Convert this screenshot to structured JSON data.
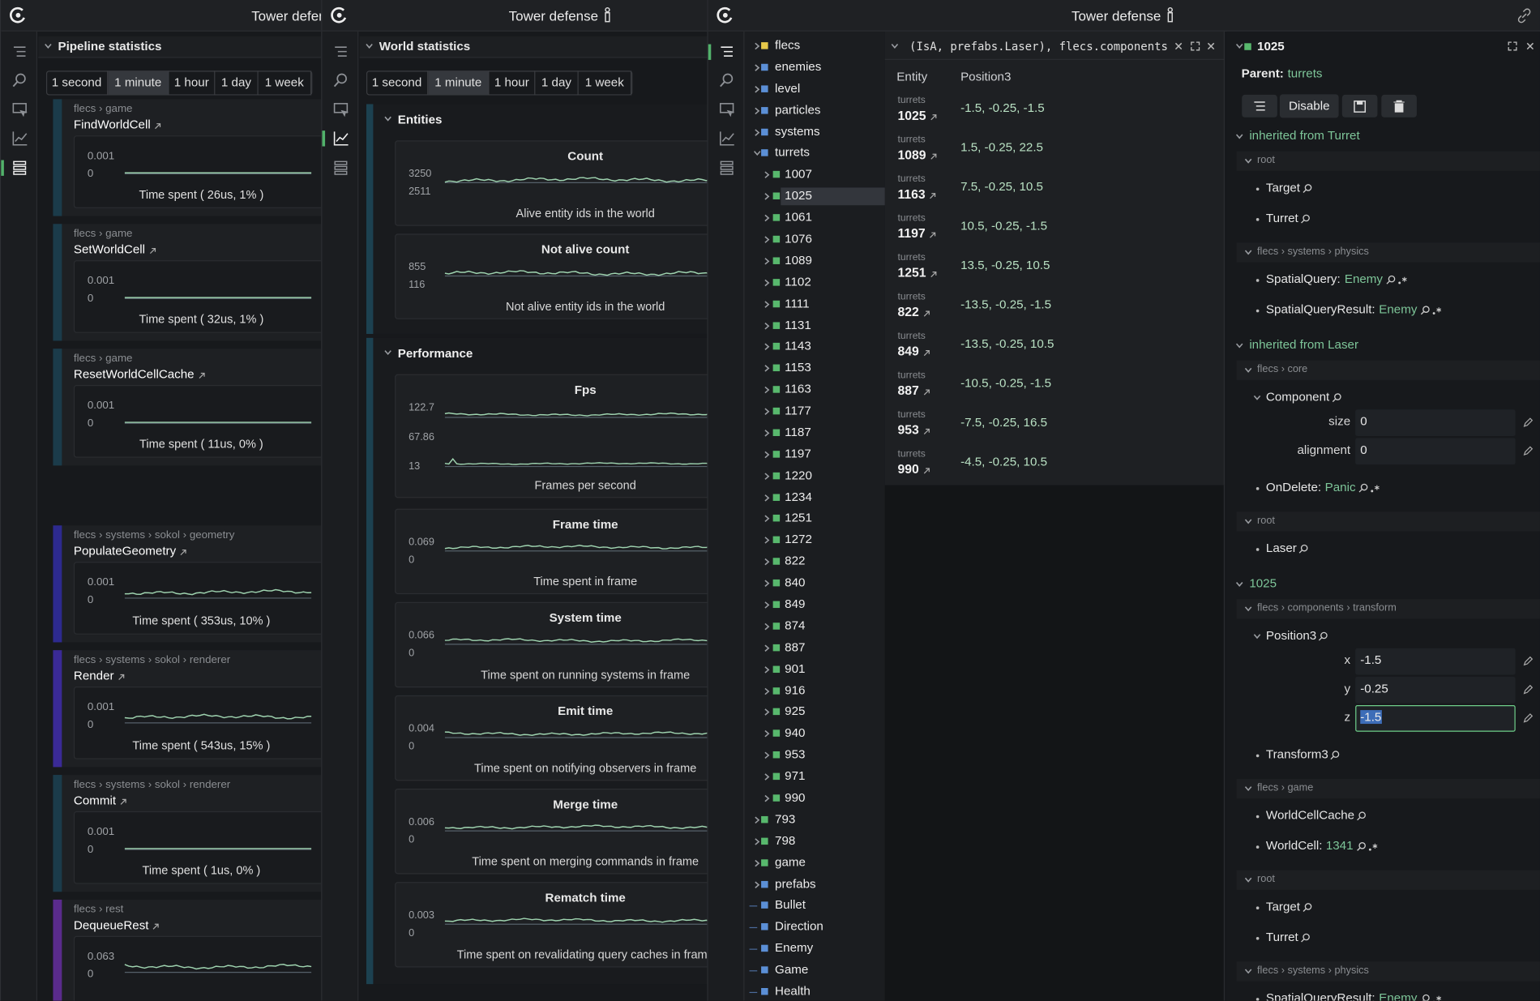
{
  "windows": [
    {
      "title": "Tower defense"
    },
    {
      "title": "Tower defense"
    },
    {
      "title": "Tower defense"
    }
  ],
  "pipeline": {
    "title": "Pipeline statistics",
    "tabs": [
      "1 second",
      "1 minute",
      "1 hour",
      "1 day",
      "1 week"
    ],
    "systems": [
      {
        "path": "flecs › game",
        "name": "FindWorldCell",
        "ymax": 0.001,
        "ymin": 0,
        "caption": "Time spent ( 26us, 1% )",
        "color": "#1b3b4a"
      },
      {
        "path": "flecs › game",
        "name": "SetWorldCell",
        "ymax": 0.001,
        "ymin": 0,
        "caption": "Time spent ( 32us, 1% )",
        "color": "#1b3b4a"
      },
      {
        "path": "flecs › game",
        "name": "ResetWorldCellCache",
        "ymax": 0.001,
        "ymin": 0,
        "caption": "Time spent ( 11us, 0% )",
        "color": "#1b3b4a"
      },
      {
        "path": "flecs › systems › sokol › geometry",
        "name": "PopulateGeometry",
        "ymax": 0.001,
        "ymin": 0,
        "caption": "Time spent ( 353us, 10% )",
        "color": "#2d2a8e"
      },
      {
        "path": "flecs › systems › sokol › renderer",
        "name": "Render",
        "ymax": 0.001,
        "ymin": 0,
        "caption": "Time spent ( 543us, 15% )",
        "color": "#3a2a96"
      },
      {
        "path": "flecs › systems › sokol › renderer",
        "name": "Commit",
        "ymax": 0.001,
        "ymin": 0,
        "caption": "Time spent ( 1us, 0% )",
        "color": "#1b3b4a"
      },
      {
        "path": "flecs › rest",
        "name": "DequeueRest",
        "ymax": 0.063,
        "ymin": 0,
        "color": "#5a2b8c"
      }
    ]
  },
  "world": {
    "title": "World statistics",
    "tabs": [
      "1 second",
      "1 minute",
      "1 hour",
      "1 day",
      "1 week"
    ],
    "sections": [
      {
        "title": "Entities",
        "charts": [
          {
            "title": "Count",
            "labels": [
              3250,
              2511
            ],
            "caption": "Alive entity ids in the world"
          },
          {
            "title": "Not alive count",
            "labels": [
              855,
              116
            ],
            "caption": "Not alive entity ids in the world"
          }
        ]
      },
      {
        "title": "Performance",
        "charts": [
          {
            "title": "Fps",
            "labels": [
              122.7,
              67.86,
              13
            ],
            "caption": "Frames per second"
          },
          {
            "title": "Frame time",
            "labels": [
              0.069,
              0
            ],
            "caption": "Time spent in frame"
          },
          {
            "title": "System time",
            "labels": [
              0.066,
              0
            ],
            "caption": "Time spent on running systems in frame"
          },
          {
            "title": "Emit time",
            "labels": [
              0.004,
              0
            ],
            "caption": "Time spent on notifying observers in frame"
          },
          {
            "title": "Merge time",
            "labels": [
              0.006,
              0
            ],
            "caption": "Time spent on merging commands in frame"
          },
          {
            "title": "Rematch time",
            "labels": [
              0.003,
              0
            ],
            "caption": "Time spent on revalidating query caches in frame"
          }
        ]
      }
    ]
  },
  "tree": {
    "roots": [
      "flecs",
      "enemies",
      "level",
      "particles",
      "systems"
    ],
    "expanded": "turrets",
    "children": [
      "1007",
      "1025",
      "1061",
      "1076",
      "1089",
      "1102",
      "1111",
      "1131",
      "1143",
      "1153",
      "1163",
      "1177",
      "1187",
      "1197",
      "1220",
      "1234",
      "1251",
      "1272",
      "822",
      "840",
      "849",
      "874",
      "887",
      "901",
      "916",
      "925",
      "940",
      "953",
      "971",
      "990"
    ],
    "after": [
      "793",
      "798",
      "game",
      "prefabs"
    ],
    "leaves": [
      "Bullet",
      "Direction",
      "Enemy",
      "Game",
      "Health"
    ]
  },
  "query": {
    "expression": "(IsA, prefabs.Laser), flecs.components",
    "columns": [
      "Entity",
      "Position3"
    ],
    "rows": [
      {
        "parent": "turrets",
        "entity": "1025",
        "value": "-1.5, -0.25, -1.5"
      },
      {
        "parent": "turrets",
        "entity": "1089",
        "value": "1.5, -0.25, 22.5"
      },
      {
        "parent": "turrets",
        "entity": "1163",
        "value": "7.5, -0.25, 10.5"
      },
      {
        "parent": "turrets",
        "entity": "1197",
        "value": "10.5, -0.25, -1.5"
      },
      {
        "parent": "turrets",
        "entity": "1251",
        "value": "13.5, -0.25, 10.5"
      },
      {
        "parent": "turrets",
        "entity": "822",
        "value": "-13.5, -0.25, -1.5"
      },
      {
        "parent": "turrets",
        "entity": "849",
        "value": "-13.5, -0.25, 10.5"
      },
      {
        "parent": "turrets",
        "entity": "887",
        "value": "-10.5, -0.25, -1.5"
      },
      {
        "parent": "turrets",
        "entity": "953",
        "value": "-7.5, -0.25, 16.5"
      },
      {
        "parent": "turrets",
        "entity": "990",
        "value": "-4.5, -0.25, 10.5"
      }
    ]
  },
  "inspector": {
    "entity": "1025",
    "parent_label": "Parent:",
    "parent": "turrets",
    "button": "Disable",
    "lines": [
      {
        "t": "section",
        "text": "inherited from Turret"
      },
      {
        "t": "scope",
        "text": "root"
      },
      {
        "t": "item",
        "text": "Target"
      },
      {
        "t": "item",
        "text": "Turret"
      },
      {
        "t": "scope",
        "text": "flecs › systems › physics"
      },
      {
        "t": "item",
        "text": "SpatialQuery:",
        "ref": "Enemy"
      },
      {
        "t": "item",
        "text": "SpatialQueryResult:",
        "ref": "Enemy"
      },
      {
        "t": "section",
        "text": "inherited from Laser"
      },
      {
        "t": "scope",
        "text": "flecs › core"
      },
      {
        "t": "comp",
        "text": "Component"
      },
      {
        "t": "field",
        "label": "size",
        "value": 0
      },
      {
        "t": "field",
        "label": "alignment",
        "value": 0
      },
      {
        "t": "item",
        "text": "OnDelete:",
        "ref": "Panic"
      },
      {
        "t": "scope",
        "text": "root"
      },
      {
        "t": "item",
        "text": "Laser"
      },
      {
        "t": "section",
        "text": "1025"
      },
      {
        "t": "scope",
        "text": "flecs › components › transform"
      },
      {
        "t": "comp",
        "text": "Position3"
      },
      {
        "t": "field",
        "label": "x",
        "value": -1.5
      },
      {
        "t": "field",
        "label": "y",
        "value": -0.25
      },
      {
        "t": "field",
        "label": "z",
        "value": -1.5,
        "focused": true
      },
      {
        "t": "item",
        "text": "Transform3"
      },
      {
        "t": "scope",
        "text": "flecs › game"
      },
      {
        "t": "item",
        "text": "WorldCellCache"
      },
      {
        "t": "item",
        "text": "WorldCell:",
        "ref": "1341"
      },
      {
        "t": "scope",
        "text": "root"
      },
      {
        "t": "item",
        "text": "Target"
      },
      {
        "t": "item",
        "text": "Turret"
      },
      {
        "t": "scope",
        "text": "flecs › systems › physics"
      },
      {
        "t": "item",
        "text": "SpatialQueryResult:",
        "ref": "Enemy"
      }
    ]
  }
}
